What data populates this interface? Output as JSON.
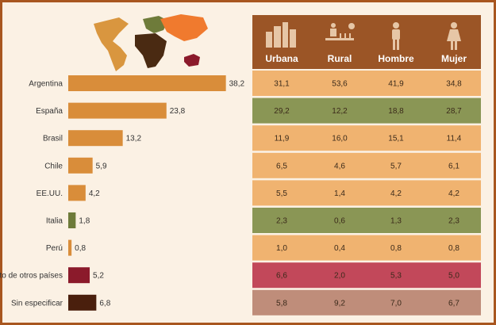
{
  "chart_data": {
    "type": "bar",
    "orientation": "horizontal",
    "categories": [
      "Argentina",
      "España",
      "Brasil",
      "Chile",
      "EE.UU.",
      "Italia",
      "Perú",
      "Resto de otros países",
      "Sin especificar"
    ],
    "values": [
      38.2,
      23.8,
      13.2,
      5.9,
      4.2,
      1.8,
      0.8,
      5.2,
      6.8
    ],
    "value_labels": [
      "38,2",
      "23,8",
      "13,2",
      "5,9",
      "4,2",
      "1,8",
      "0,8",
      "5,2",
      "6,8"
    ],
    "bar_colors": [
      "#d98d3a",
      "#d98d3a",
      "#d98d3a",
      "#d98d3a",
      "#d98d3a",
      "#6e7b3a",
      "#d98d3a",
      "#8b1a2b",
      "#4a1f0d"
    ],
    "xlim": [
      0,
      40
    ],
    "table": {
      "columns": [
        "Urbana",
        "Rural",
        "Hombre",
        "Mujer"
      ],
      "column_icons": [
        "city-icon",
        "farmer-icon",
        "man-icon",
        "woman-icon"
      ],
      "rows": [
        [
          "31,1",
          "53,6",
          "41,9",
          "34,8"
        ],
        [
          "29,2",
          "12,2",
          "18,8",
          "28,7"
        ],
        [
          "11,9",
          "16,0",
          "15,1",
          "11,4"
        ],
        [
          "6,5",
          "4,6",
          "5,7",
          "6,1"
        ],
        [
          "5,5",
          "1,4",
          "4,2",
          "4,2"
        ],
        [
          "2,3",
          "0,6",
          "1,3",
          "2,3"
        ],
        [
          "1,0",
          "0,4",
          "0,8",
          "0,8"
        ],
        [
          "6,6",
          "2,0",
          "5,3",
          "5,0"
        ],
        [
          "5,8",
          "9,2",
          "7,0",
          "6,7"
        ]
      ],
      "row_colors": [
        "#f0b370",
        "#8a9655",
        "#f0b370",
        "#f0b370",
        "#f0b370",
        "#8a9655",
        "#f0b370",
        "#c2485a",
        "#bf8d7a"
      ],
      "header_color": "#9b5526"
    },
    "map_colors": {
      "americas": "#d9963f",
      "europe": "#6e7b3a",
      "africa": "#4a2a12",
      "asia": "#f07a2e",
      "oceania": "#8b1a2b"
    }
  }
}
